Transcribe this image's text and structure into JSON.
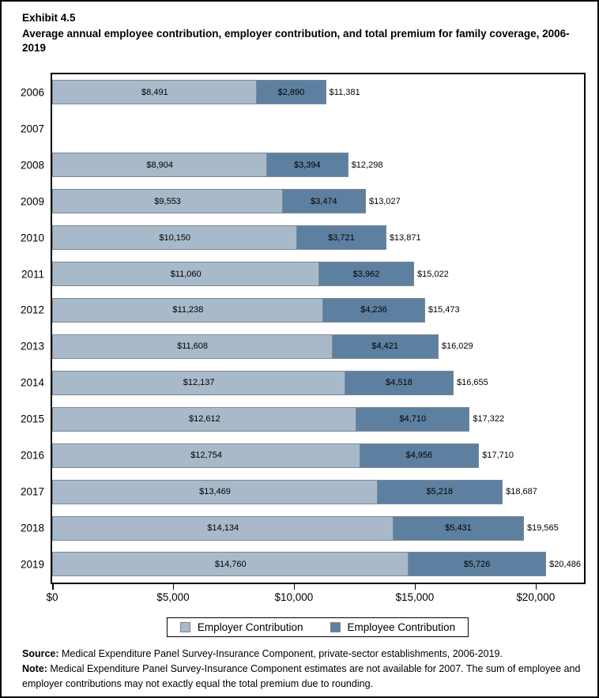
{
  "title": {
    "exhibit": "Exhibit 4.5",
    "text": "Average annual employee contribution, employer contribution, and total premium for family coverage, 2006-2019"
  },
  "chart_data": {
    "type": "bar",
    "orientation": "horizontal",
    "stacked": true,
    "grid": false,
    "categories": [
      "2006",
      "2007",
      "2008",
      "2009",
      "2010",
      "2011",
      "2012",
      "2013",
      "2014",
      "2015",
      "2016",
      "2017",
      "2018",
      "2019"
    ],
    "series": [
      {
        "name": "Employer Contribution",
        "color": "#a8b9ca",
        "values": [
          8491,
          null,
          8904,
          9553,
          10150,
          11060,
          11238,
          11608,
          12137,
          12612,
          12754,
          13469,
          14134,
          14760
        ]
      },
      {
        "name": "Employee Contribution",
        "color": "#5e80a0",
        "values": [
          2890,
          null,
          3394,
          3474,
          3721,
          3962,
          4236,
          4421,
          4518,
          4710,
          4956,
          5218,
          5431,
          5726
        ]
      }
    ],
    "totals": [
      11381,
      null,
      12298,
      13027,
      13871,
      15022,
      15473,
      16029,
      16655,
      17322,
      17710,
      18687,
      19565,
      20486
    ],
    "x_ticks": [
      "$0",
      "$5,000",
      "$10,000",
      "$15,000",
      "$20,000"
    ],
    "x_tick_values": [
      0,
      5000,
      10000,
      15000,
      20000
    ],
    "xlim": [
      0,
      22000
    ],
    "value_prefix": "$",
    "note_missing_year": "2007",
    "legend_position": "bottom"
  },
  "legend": {
    "items": [
      {
        "label": "Employer Contribution",
        "color": "#a8b9ca"
      },
      {
        "label": "Employee Contribution",
        "color": "#5e80a0"
      }
    ]
  },
  "footnotes": {
    "source_label": "Source:",
    "source_text": " Medical Expenditure Panel Survey-Insurance Component, private-sector establishments, 2006-2019.",
    "note_label": "Note:",
    "note_text": " Medical Expenditure Panel Survey-Insurance Component estimates are not available for 2007. The sum of employee and employer contributions may not exactly equal the total premium due to rounding."
  }
}
